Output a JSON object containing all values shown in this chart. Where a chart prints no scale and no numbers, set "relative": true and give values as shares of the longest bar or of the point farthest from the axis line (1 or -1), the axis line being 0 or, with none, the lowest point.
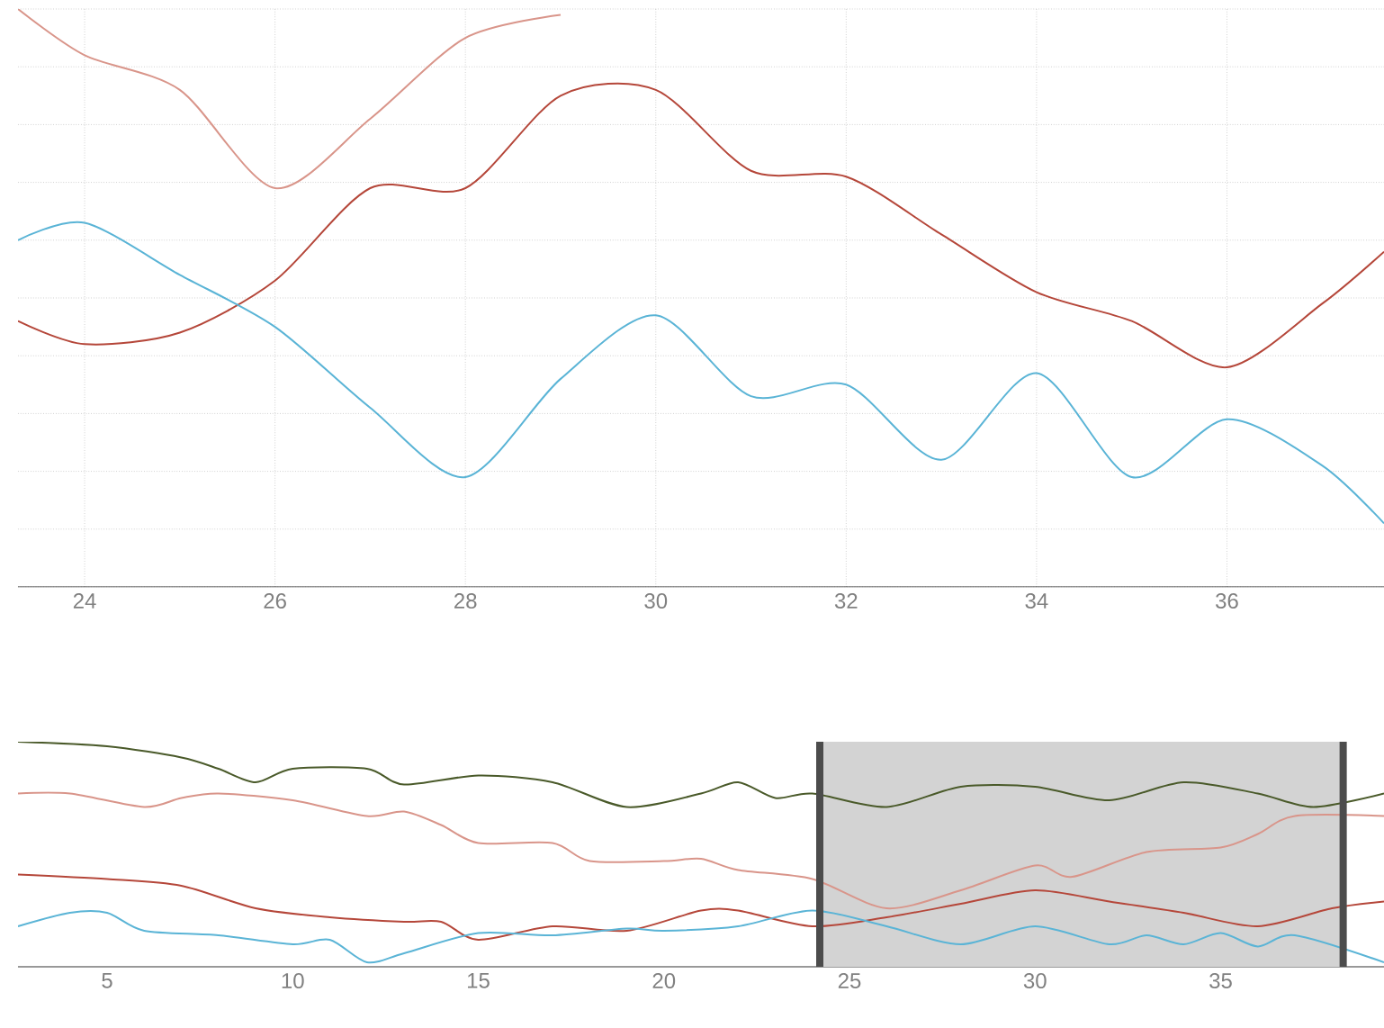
{
  "chart_data": [
    {
      "type": "line",
      "relative": true,
      "xlim": [
        23.3,
        37.65
      ],
      "xticks": [
        24,
        26,
        28,
        30,
        32,
        34,
        36
      ],
      "grid": true,
      "series": [
        {
          "color": "#d9958a",
          "x": [
            23.3,
            24,
            25,
            26,
            27,
            28,
            29
          ],
          "values": [
            1.0,
            0.92,
            0.86,
            0.69,
            0.81,
            0.95,
            0.99
          ]
        },
        {
          "color": "#b5473a",
          "x": [
            23.3,
            24,
            25,
            26,
            27,
            28,
            29,
            30,
            31,
            32,
            33,
            34,
            35,
            36,
            37,
            37.65
          ],
          "values": [
            0.46,
            0.42,
            0.44,
            0.53,
            0.69,
            0.69,
            0.85,
            0.86,
            0.72,
            0.71,
            0.61,
            0.51,
            0.46,
            0.38,
            0.49,
            0.58
          ]
        },
        {
          "color": "#5ab4d6",
          "x": [
            23.3,
            24,
            25,
            26,
            27,
            28,
            29,
            30,
            31,
            32,
            33,
            34,
            35,
            36,
            37,
            37.65
          ],
          "values": [
            0.6,
            0.63,
            0.54,
            0.45,
            0.31,
            0.19,
            0.36,
            0.47,
            0.33,
            0.35,
            0.22,
            0.37,
            0.19,
            0.29,
            0.21,
            0.11
          ]
        }
      ]
    },
    {
      "type": "line",
      "relative": true,
      "xlim": [
        2.6,
        39.4
      ],
      "xticks": [
        5,
        10,
        15,
        20,
        25,
        30,
        35
      ],
      "bands": [
        {
          "axis": "x",
          "from": 24.2,
          "to": 38.3,
          "color": "#d3d3d3"
        }
      ],
      "ref_lines": [
        {
          "axis": "x",
          "value": 24.2,
          "color": "#4c4c4c"
        },
        {
          "axis": "x",
          "value": 38.3,
          "color": "#4c4c4c"
        }
      ],
      "series": [
        {
          "color": "#4a5a2a",
          "x": [
            2.6,
            5,
            7,
            8,
            9,
            10,
            12,
            13,
            15,
            17,
            19,
            21,
            22,
            23,
            24,
            26,
            28,
            30,
            32,
            34,
            36,
            37.5,
            39.4
          ],
          "values": [
            1.0,
            0.98,
            0.93,
            0.88,
            0.82,
            0.88,
            0.88,
            0.81,
            0.85,
            0.82,
            0.71,
            0.77,
            0.82,
            0.75,
            0.77,
            0.71,
            0.8,
            0.8,
            0.74,
            0.82,
            0.77,
            0.71,
            0.77
          ]
        },
        {
          "color": "#d9958a",
          "x": [
            2.6,
            4,
            6,
            7,
            8,
            10,
            12,
            13,
            14,
            15,
            17,
            18,
            20,
            21,
            22,
            24,
            26,
            28,
            30,
            31,
            33,
            35,
            36,
            37,
            39.4
          ],
          "values": [
            0.77,
            0.77,
            0.71,
            0.75,
            0.77,
            0.74,
            0.67,
            0.69,
            0.63,
            0.55,
            0.55,
            0.47,
            0.47,
            0.48,
            0.43,
            0.39,
            0.26,
            0.34,
            0.45,
            0.4,
            0.51,
            0.53,
            0.59,
            0.67,
            0.67
          ]
        },
        {
          "color": "#b5473a",
          "x": [
            2.6,
            5,
            7,
            9,
            11,
            13,
            14,
            15,
            17,
            19,
            21,
            22,
            24,
            26,
            28,
            30,
            32,
            34,
            36,
            38,
            39.4
          ],
          "values": [
            0.41,
            0.39,
            0.36,
            0.26,
            0.22,
            0.2,
            0.2,
            0.12,
            0.18,
            0.16,
            0.25,
            0.25,
            0.18,
            0.22,
            0.28,
            0.34,
            0.29,
            0.24,
            0.18,
            0.26,
            0.29
          ]
        },
        {
          "color": "#5ab4d6",
          "x": [
            2.6,
            4,
            5,
            6,
            8,
            10,
            11,
            12,
            13,
            15,
            17,
            19,
            20,
            22,
            24,
            26,
            28,
            30,
            32,
            33,
            34,
            35,
            36,
            37,
            39.4
          ],
          "values": [
            0.18,
            0.24,
            0.24,
            0.16,
            0.14,
            0.1,
            0.12,
            0.02,
            0.06,
            0.15,
            0.14,
            0.17,
            0.16,
            0.18,
            0.25,
            0.18,
            0.1,
            0.18,
            0.1,
            0.14,
            0.1,
            0.15,
            0.09,
            0.14,
            0.02
          ]
        }
      ]
    }
  ]
}
